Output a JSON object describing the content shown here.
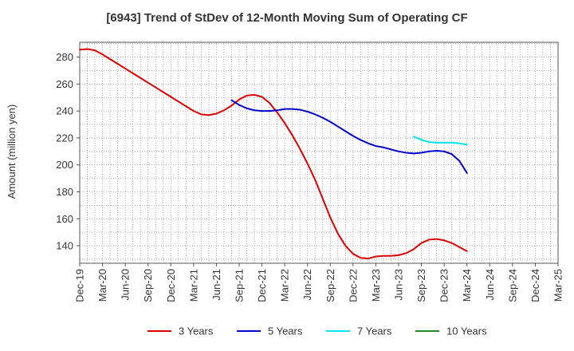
{
  "chart_data": {
    "type": "line",
    "title": "[6943]  Trend of StDev of 12-Month Moving Sum of Operating CF",
    "xlabel": "",
    "ylabel": "Amount (million yen)",
    "ylim": [
      127,
      291
    ],
    "yticks": [
      140,
      160,
      180,
      200,
      220,
      240,
      260,
      280
    ],
    "x_ticks": [
      "Dec-19",
      "Mar-20",
      "Jun-20",
      "Sep-20",
      "Dec-20",
      "Mar-21",
      "Jun-21",
      "Sep-21",
      "Dec-21",
      "Mar-22",
      "Jun-22",
      "Sep-22",
      "Dec-22",
      "Mar-23",
      "Jun-23",
      "Sep-23",
      "Dec-23",
      "Mar-24",
      "Jun-24",
      "Sep-24",
      "Dec-24",
      "Mar-25"
    ],
    "grid": true,
    "legend_position": "bottom",
    "series": [
      {
        "name": "3 Years",
        "color": "#dd0000",
        "x": [
          "Dec-19",
          "Jan-20",
          "Feb-20",
          "Mar-20",
          "Apr-20",
          "May-20",
          "Jun-20",
          "Jul-20",
          "Aug-20",
          "Sep-20",
          "Oct-20",
          "Nov-20",
          "Dec-20",
          "Jan-21",
          "Feb-21",
          "Mar-21",
          "Apr-21",
          "May-21",
          "Jun-21",
          "Jul-21",
          "Aug-21",
          "Sep-21",
          "Oct-21",
          "Nov-21",
          "Dec-21",
          "Jan-22",
          "Feb-22",
          "Mar-22",
          "Apr-22",
          "May-22",
          "Jun-22",
          "Jul-22",
          "Aug-22",
          "Sep-22",
          "Oct-22",
          "Nov-22",
          "Dec-22",
          "Jan-23",
          "Feb-23",
          "Mar-23",
          "Apr-23",
          "May-23",
          "Jun-23",
          "Jul-23",
          "Aug-23",
          "Sep-23",
          "Oct-23",
          "Nov-23",
          "Dec-23",
          "Jan-24",
          "Feb-24",
          "Mar-24"
        ],
        "values": [
          285.5,
          286,
          285,
          282,
          278.5,
          275,
          271.5,
          268,
          264.5,
          261,
          257.5,
          254,
          250.5,
          247,
          243.5,
          240,
          237.5,
          237,
          238,
          240.5,
          244,
          248.5,
          251.5,
          252,
          250.5,
          246,
          239,
          231,
          222,
          212,
          201,
          189,
          175,
          161,
          149,
          140,
          134,
          131,
          130.5,
          132,
          132.5,
          132.5,
          133,
          134.5,
          137.5,
          142,
          144.5,
          145,
          144,
          142,
          139,
          136
        ]
      },
      {
        "name": "5 Years",
        "color": "#0000cc",
        "x": [
          "Aug-21",
          "Sep-21",
          "Oct-21",
          "Nov-21",
          "Dec-21",
          "Jan-22",
          "Feb-22",
          "Mar-22",
          "Apr-22",
          "May-22",
          "Jun-22",
          "Jul-22",
          "Aug-22",
          "Sep-22",
          "Oct-22",
          "Nov-22",
          "Dec-22",
          "Jan-23",
          "Feb-23",
          "Mar-23",
          "Apr-23",
          "May-23",
          "Jun-23",
          "Jul-23",
          "Aug-23",
          "Sep-23",
          "Oct-23",
          "Nov-23",
          "Dec-23",
          "Jan-24",
          "Feb-24",
          "Mar-24"
        ],
        "values": [
          248,
          244.5,
          242,
          240.5,
          240,
          240,
          240.5,
          241.5,
          241.5,
          241,
          239.5,
          237.5,
          235,
          232,
          228.5,
          225,
          221.5,
          218.5,
          216,
          214,
          213,
          211.5,
          210,
          209,
          208.5,
          209,
          210,
          210.5,
          210,
          208,
          203,
          194
        ]
      },
      {
        "name": "7 Years",
        "color": "#00e5ee",
        "x": [
          "Aug-23",
          "Sep-23",
          "Oct-23",
          "Nov-23",
          "Dec-23",
          "Jan-24",
          "Feb-24",
          "Mar-24"
        ],
        "values": [
          221,
          218.5,
          217,
          216.5,
          216.5,
          216.5,
          216,
          215
        ]
      },
      {
        "name": "10 Years",
        "color": "#228b22",
        "x": [],
        "values": []
      }
    ]
  }
}
